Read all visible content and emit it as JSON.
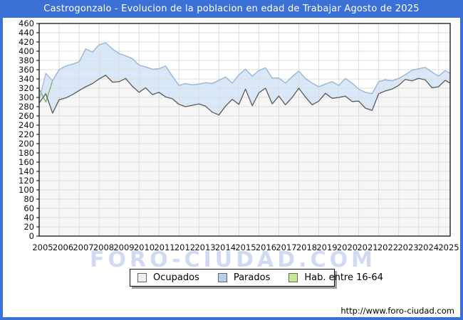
{
  "title": "Castrogonzalo - Evolucion de la poblacion en edad de Trabajar Agosto de 2025",
  "watermark": "FORO-CIUDAD.COM",
  "footer_url": "http://www.foro-ciudad.com",
  "colors": {
    "frame_blue": "#3b70d6",
    "title_text": "#ffffff",
    "plot_background": "#ffffff",
    "gridline": "#dcdcdc",
    "axis": "#000000",
    "ocupados_fill": "#f6f6f6",
    "ocupados_line": "#5a5a5a",
    "parados_fill": "#d9e8f8",
    "parados_line": "#9db9e4",
    "hab_fill": "#d6eeb2",
    "hab_line": "#7fae57"
  },
  "legend": {
    "items": [
      {
        "id": "ocupados",
        "label": "Ocupados",
        "swatch": "#f0f0f0"
      },
      {
        "id": "parados",
        "label": "Parados",
        "swatch": "#b4cfec"
      },
      {
        "id": "hab-16-64",
        "label": "Hab. entre 16-64",
        "swatch": "#c6e88e"
      }
    ]
  },
  "chart_data": {
    "type": "area",
    "title": "Castrogonzalo - Evolucion de la poblacion en edad de Trabajar Agosto de 2025",
    "xlabel": "",
    "ylabel": "",
    "xlim": [
      2005,
      2025.58
    ],
    "ylim": [
      0,
      460
    ],
    "ytick_step": 20,
    "grid": true,
    "legend_position": "bottom",
    "x_tick_years": [
      2005,
      2006,
      2007,
      2008,
      2009,
      2010,
      2011,
      2012,
      2013,
      2014,
      2015,
      2016,
      2017,
      2018,
      2019,
      2020,
      2021,
      2022,
      2023,
      2024,
      2025
    ],
    "x": [
      2005,
      2005.33,
      2005.67,
      2006,
      2006.33,
      2006.67,
      2007,
      2007.33,
      2007.67,
      2008,
      2008.33,
      2008.67,
      2009,
      2009.33,
      2009.67,
      2010,
      2010.33,
      2010.67,
      2011,
      2011.33,
      2011.67,
      2012,
      2012.33,
      2012.67,
      2013,
      2013.33,
      2013.67,
      2014,
      2014.33,
      2014.67,
      2015,
      2015.33,
      2015.67,
      2016,
      2016.33,
      2016.67,
      2017,
      2017.33,
      2017.67,
      2018,
      2018.33,
      2018.67,
      2019,
      2019.33,
      2019.67,
      2020,
      2020.33,
      2020.67,
      2021,
      2021.33,
      2021.67,
      2022,
      2022.33,
      2022.67,
      2023,
      2023.33,
      2023.67,
      2024,
      2024.33,
      2024.67,
      2025,
      2025.33,
      2025.58
    ],
    "series": [
      {
        "name": "Hab. entre 16-64",
        "role": "background-total",
        "fill_key": "hab_fill",
        "stroke_key": "hab_line",
        "values": [
          318,
          290,
          336,
          360,
          368,
          372,
          377,
          405,
          398,
          414,
          418,
          405,
          395,
          390,
          384,
          370,
          366,
          361,
          362,
          368,
          346,
          326,
          330,
          327,
          329,
          332,
          330,
          337,
          344,
          331,
          349,
          361,
          346,
          358,
          364,
          342,
          342,
          331,
          345,
          357,
          341,
          331,
          323,
          329,
          334,
          326,
          341,
          331,
          318,
          311,
          308,
          334,
          338,
          336,
          341,
          349,
          359,
          362,
          365,
          355,
          346,
          358,
          352
        ]
      },
      {
        "name": "Parados (apilados sobre Ocupados)",
        "role": "stack-top",
        "fill_key": "parados_fill",
        "stroke_key": "parados_line",
        "values": [
          295,
          352,
          336,
          360,
          368,
          372,
          377,
          405,
          398,
          414,
          418,
          405,
          395,
          390,
          384,
          370,
          366,
          361,
          362,
          368,
          346,
          326,
          330,
          327,
          329,
          332,
          330,
          337,
          344,
          331,
          349,
          361,
          346,
          358,
          364,
          342,
          342,
          331,
          345,
          357,
          341,
          331,
          323,
          329,
          334,
          326,
          341,
          331,
          318,
          311,
          308,
          334,
          338,
          336,
          341,
          349,
          359,
          362,
          365,
          355,
          346,
          358,
          352
        ]
      },
      {
        "name": "Ocupados",
        "role": "bottom",
        "fill_key": "ocupados_fill",
        "stroke_key": "ocupados_line",
        "values": [
          288,
          308,
          266,
          295,
          299,
          306,
          315,
          323,
          330,
          340,
          348,
          333,
          334,
          341,
          324,
          311,
          321,
          306,
          311,
          301,
          297,
          285,
          280,
          283,
          286,
          281,
          268,
          262,
          281,
          296,
          285,
          318,
          282,
          310,
          320,
          286,
          303,
          284,
          300,
          320,
          301,
          284,
          292,
          309,
          298,
          300,
          303,
          291,
          292,
          277,
          272,
          308,
          314,
          318,
          326,
          339,
          336,
          341,
          338,
          321,
          323,
          337,
          331
        ]
      }
    ]
  }
}
